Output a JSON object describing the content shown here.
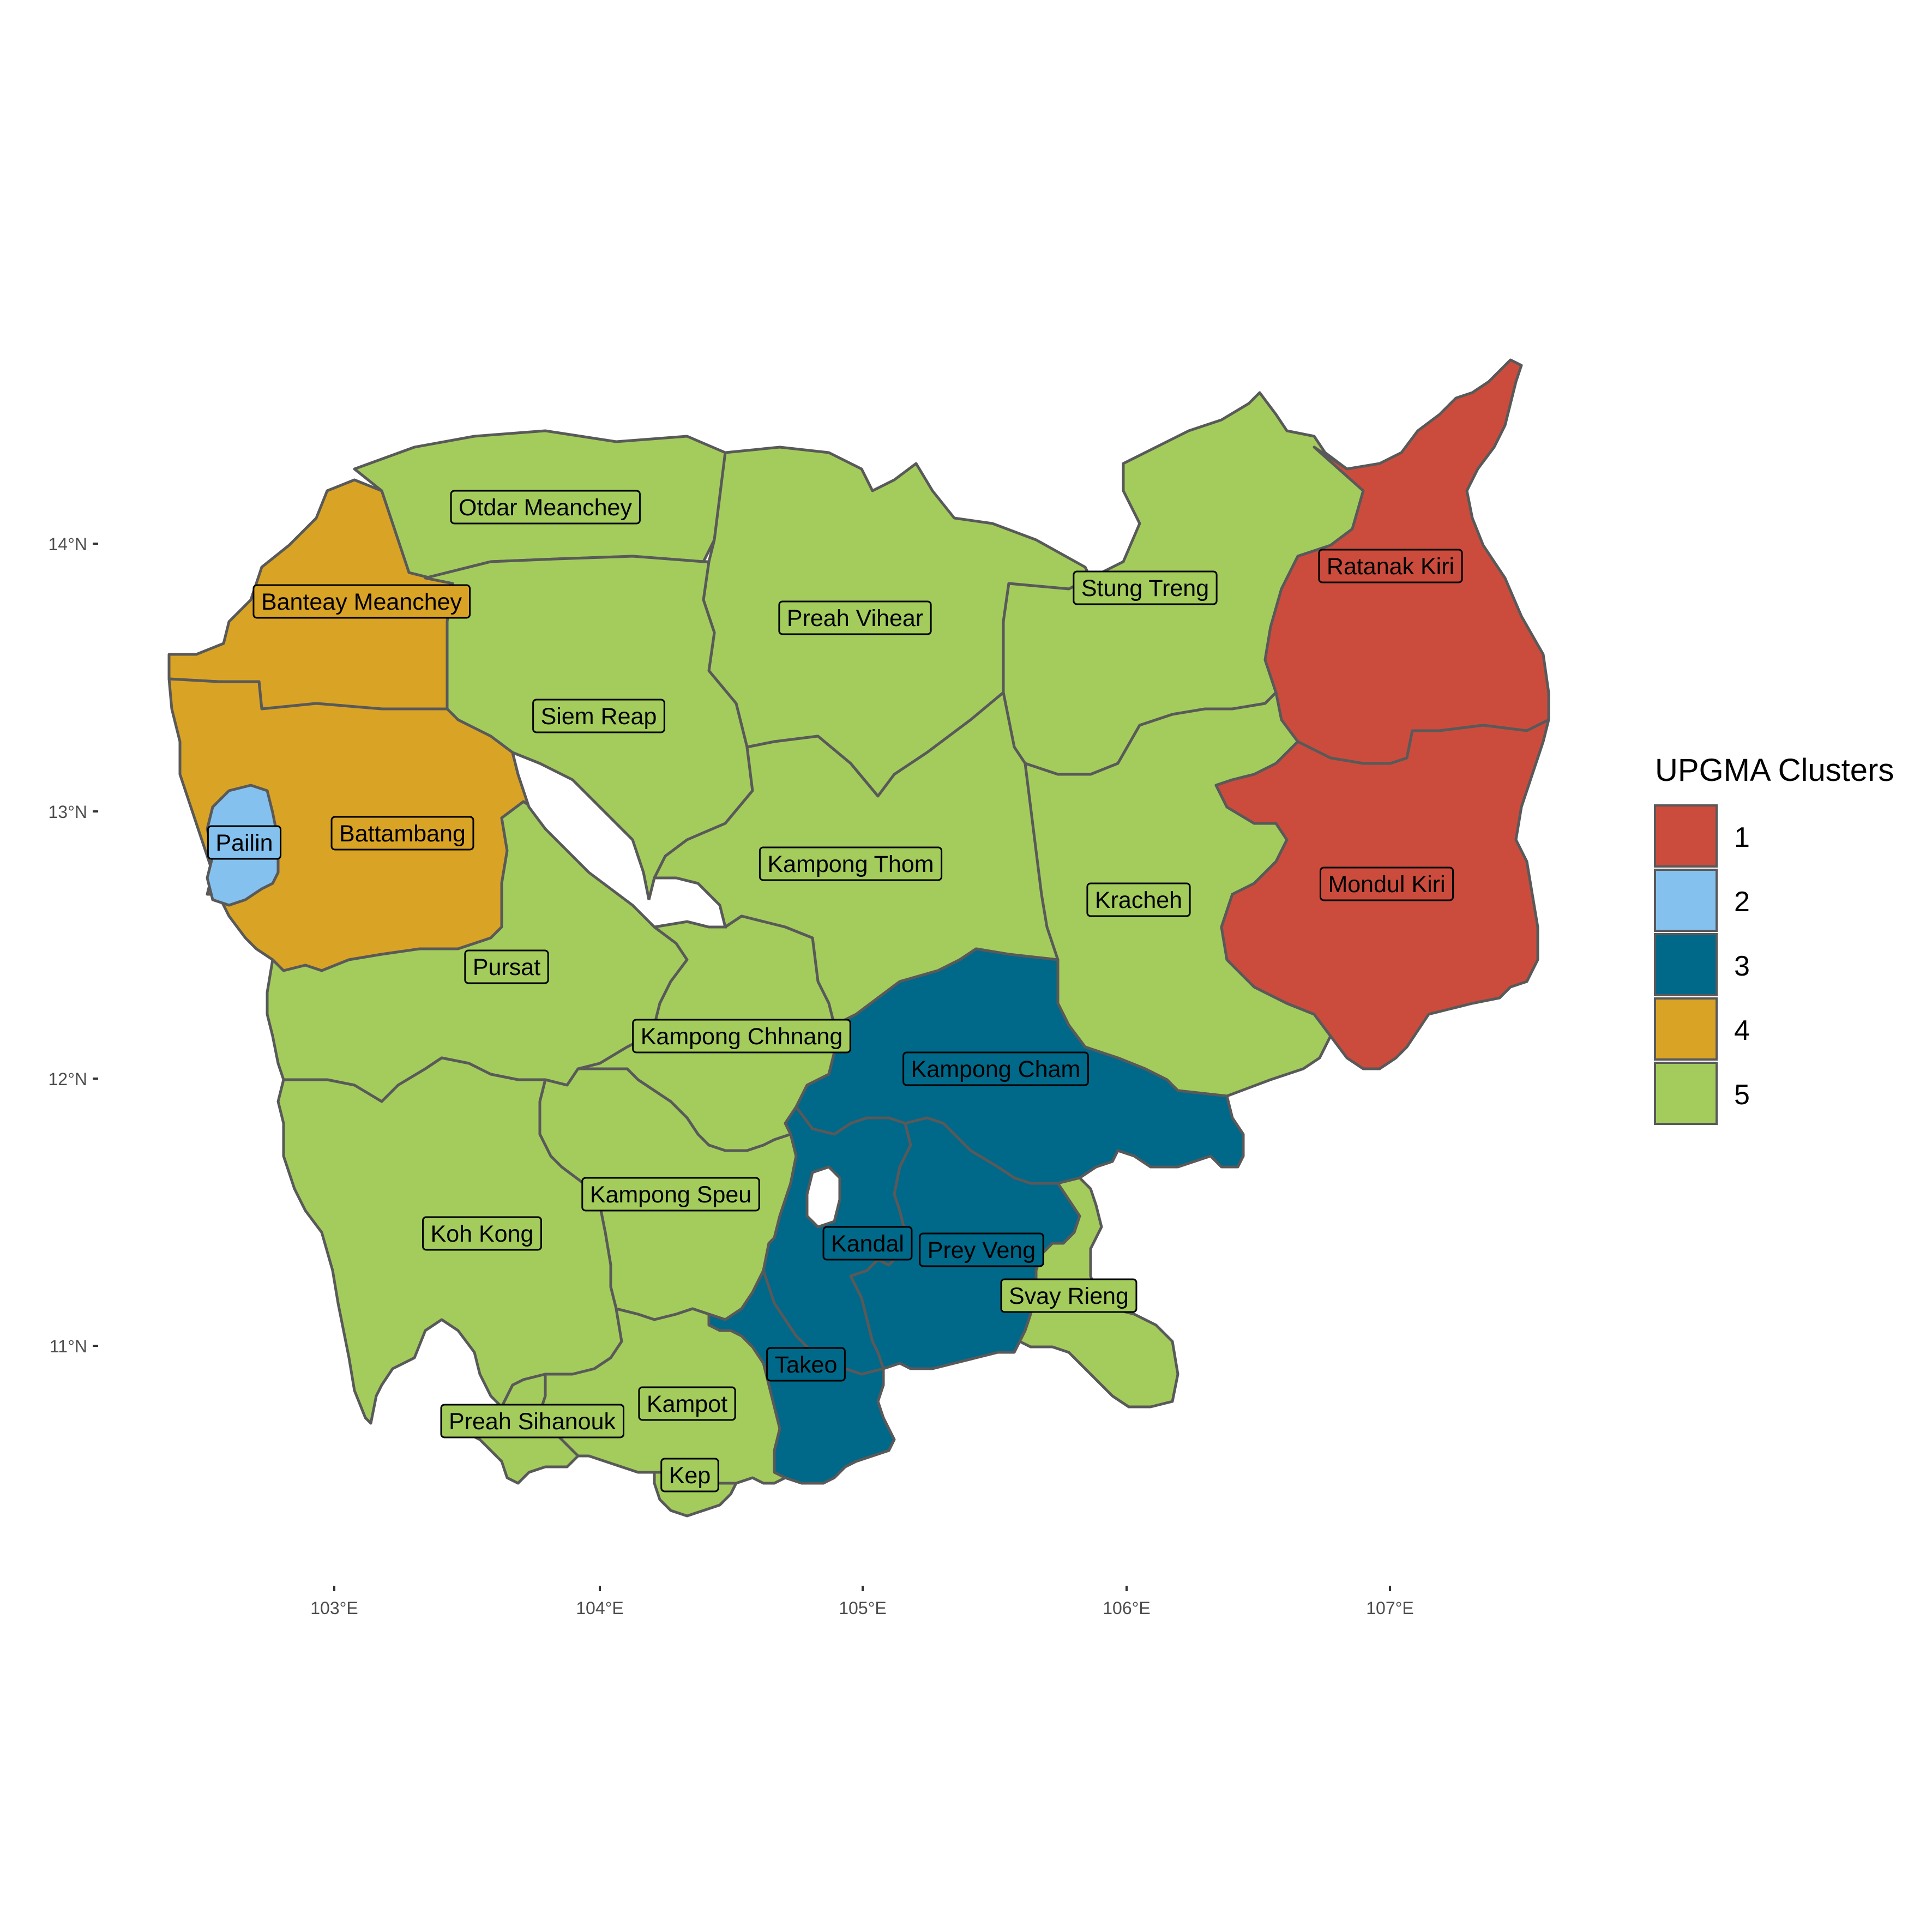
{
  "legend": {
    "title": "UPGMA Clusters",
    "items": [
      {
        "label": "1",
        "color": "#CB4C3D"
      },
      {
        "label": "2",
        "color": "#85C1EE"
      },
      {
        "label": "3",
        "color": "#006889"
      },
      {
        "label": "4",
        "color": "#D9A325"
      },
      {
        "label": "5",
        "color": "#A3CC5D"
      }
    ]
  },
  "axes": {
    "x_ticks": [
      "103°E",
      "104°E",
      "105°E",
      "106°E",
      "107°E"
    ],
    "y_ticks": [
      "14°N",
      "13°N",
      "12°N",
      "11°N"
    ]
  },
  "provinces": [
    {
      "name": "Otdar Meanchey",
      "cluster": "5"
    },
    {
      "name": "Banteay Meanchey",
      "cluster": "4"
    },
    {
      "name": "Preah Vihear",
      "cluster": "5"
    },
    {
      "name": "Stung Treng",
      "cluster": "5"
    },
    {
      "name": "Ratanak Kiri",
      "cluster": "1"
    },
    {
      "name": "Siem Reap",
      "cluster": "5"
    },
    {
      "name": "Battambang",
      "cluster": "4"
    },
    {
      "name": "Pailin",
      "cluster": "2"
    },
    {
      "name": "Kampong Thom",
      "cluster": "5"
    },
    {
      "name": "Kracheh",
      "cluster": "5"
    },
    {
      "name": "Mondul Kiri",
      "cluster": "1"
    },
    {
      "name": "Pursat",
      "cluster": "5"
    },
    {
      "name": "Kampong Chhnang",
      "cluster": "5"
    },
    {
      "name": "Kampong Cham",
      "cluster": "3"
    },
    {
      "name": "Kampong Speu",
      "cluster": "5"
    },
    {
      "name": "Koh Kong",
      "cluster": "5"
    },
    {
      "name": "Kandal",
      "cluster": "3"
    },
    {
      "name": "Prey Veng",
      "cluster": "3"
    },
    {
      "name": "Svay Rieng",
      "cluster": "5"
    },
    {
      "name": "Takeo",
      "cluster": "3"
    },
    {
      "name": "Kampot",
      "cluster": "5"
    },
    {
      "name": "Preah Sihanouk",
      "cluster": "5"
    },
    {
      "name": "Kep",
      "cluster": "5"
    }
  ]
}
